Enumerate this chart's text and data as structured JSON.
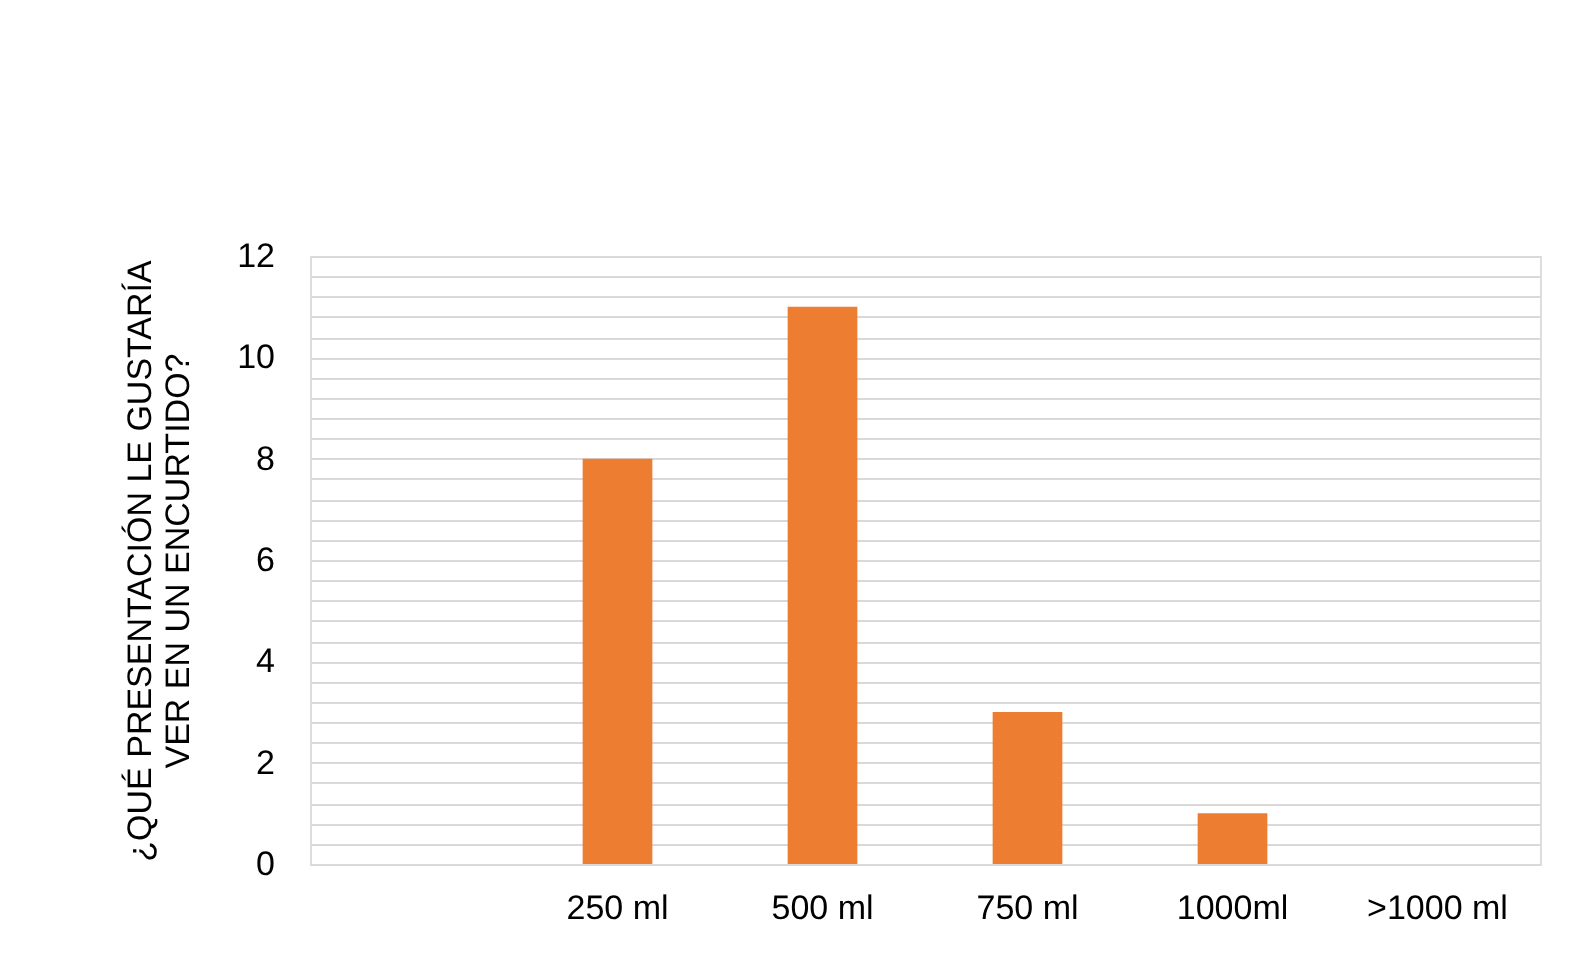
{
  "chart_data": {
    "type": "bar",
    "ylabel": [
      "¿QUÉ PRESENTACIÓN LE GUSTARÍA",
      "VER EN UN ENCURTIDO?"
    ],
    "categories": [
      null,
      "250 ml",
      "500 ml",
      "750 ml",
      "1000ml",
      ">1000 ml"
    ],
    "values": [
      0,
      8,
      11,
      3,
      1,
      0
    ],
    "color": "#ed7d31",
    "ylim": [
      0,
      12
    ],
    "yticks": [
      0,
      {
        "value": 0.4,
        "label": null
      },
      {
        "value": 0.8,
        "label": null
      },
      {
        "value": 1.2,
        "label": null
      },
      {
        "value": 1.6,
        "label": null
      },
      2,
      {
        "value": 2.4,
        "label": null
      },
      {
        "value": 2.8,
        "label": null
      },
      {
        "value": 3.2,
        "label": null
      },
      {
        "value": 3.6,
        "label": null
      },
      4,
      {
        "value": 4.4,
        "label": null
      },
      {
        "value": 4.8,
        "label": null
      },
      {
        "value": 5.2,
        "label": null
      },
      {
        "value": 5.6,
        "label": null
      },
      6,
      {
        "value": 6.4,
        "label": null
      },
      {
        "value": 6.8,
        "label": null
      },
      {
        "value": 7.2,
        "label": null
      },
      {
        "value": 7.6,
        "label": null
      },
      8,
      {
        "value": 8.4,
        "label": null
      },
      {
        "value": 8.8,
        "label": null
      },
      {
        "value": 9.2,
        "label": null
      },
      {
        "value": 9.6,
        "label": null
      },
      10,
      {
        "value": 10.4,
        "label": null
      },
      {
        "value": 10.8,
        "label": null
      },
      {
        "value": 11.2,
        "label": null
      },
      {
        "value": 11.6,
        "label": null
      },
      12
    ],
    "grid": "y"
  }
}
